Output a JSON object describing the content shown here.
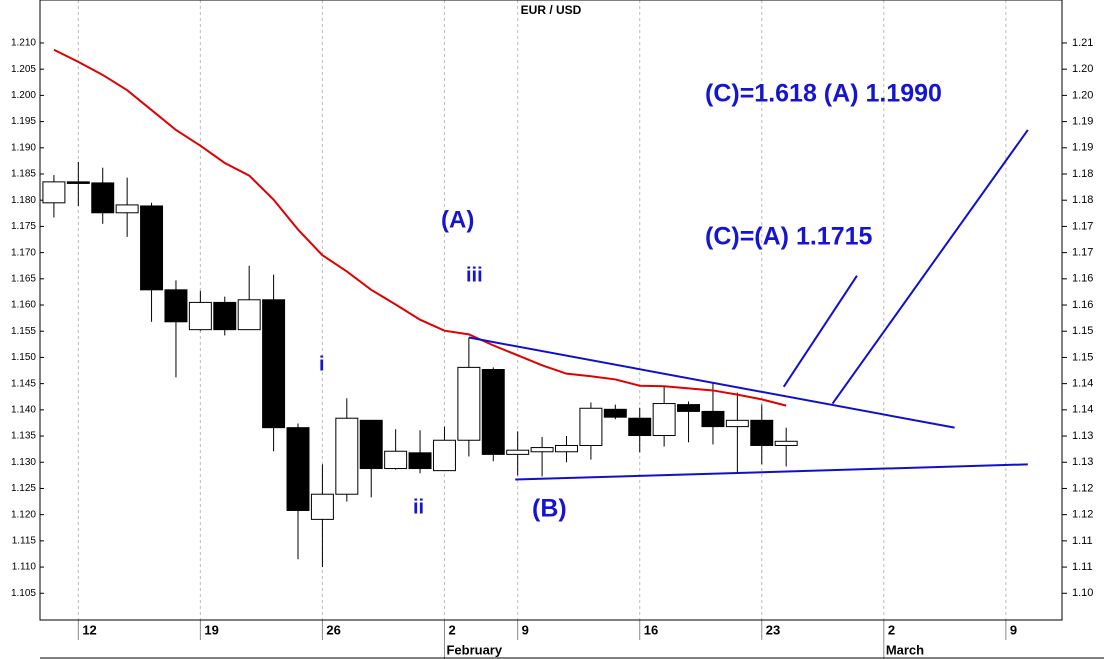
{
  "chart_data": {
    "type": "candlestick",
    "title": "EUR / USD",
    "x": [
      0,
      1,
      2,
      3,
      4,
      5,
      6,
      7,
      8,
      9,
      10,
      11,
      12,
      13,
      14,
      15,
      16,
      17,
      18,
      19,
      20,
      21,
      22,
      23,
      24,
      25,
      26,
      27,
      28,
      29,
      30
    ],
    "open": [
      1.1795,
      1.1835,
      1.1833,
      1.1776,
      1.1789,
      1.1629,
      1.1553,
      1.1605,
      1.1553,
      1.161,
      1.1366,
      1.1191,
      1.1239,
      1.138,
      1.1288,
      1.1318,
      1.1284,
      1.1342,
      1.1477,
      1.1315,
      1.132,
      1.132,
      1.1332,
      1.1401,
      1.1384,
      1.1351,
      1.141,
      1.1397,
      1.1368,
      1.138,
      1.1332
    ],
    "high": [
      1.1848,
      1.1873,
      1.1862,
      1.1843,
      1.1795,
      1.1647,
      1.1627,
      1.1616,
      1.1675,
      1.1658,
      1.1374,
      1.1296,
      1.1422,
      1.138,
      1.1363,
      1.1361,
      1.1368,
      1.1538,
      1.1481,
      1.1359,
      1.1348,
      1.135,
      1.1414,
      1.141,
      1.1404,
      1.1446,
      1.1416,
      1.1452,
      1.1433,
      1.141,
      1.1366
    ],
    "low": [
      1.1767,
      1.1789,
      1.1755,
      1.173,
      1.1568,
      1.1462,
      1.1551,
      1.1542,
      1.1553,
      1.1321,
      1.1115,
      1.11,
      1.1225,
      1.1233,
      1.1286,
      1.1279,
      1.1283,
      1.1311,
      1.1302,
      1.1275,
      1.1273,
      1.13,
      1.1305,
      1.1382,
      1.1319,
      1.133,
      1.1338,
      1.1334,
      1.1281,
      1.1296,
      1.1292
    ],
    "close": [
      1.1835,
      1.1832,
      1.1776,
      1.1791,
      1.1629,
      1.1568,
      1.1605,
      1.1553,
      1.161,
      1.1366,
      1.1208,
      1.1239,
      1.1384,
      1.1288,
      1.1321,
      1.1288,
      1.1342,
      1.1481,
      1.1315,
      1.1323,
      1.1328,
      1.1332,
      1.1403,
      1.1386,
      1.1351,
      1.1412,
      1.1397,
      1.1368,
      1.138,
      1.1332,
      1.134
    ],
    "up_color": "#ffffff",
    "down_color": "#000000",
    "moving_average": {
      "color": "#e00000",
      "values": [
        1.2087,
        1.2064,
        1.2039,
        1.201,
        1.1972,
        1.1934,
        1.1904,
        1.1871,
        1.1847,
        1.1801,
        1.1744,
        1.1695,
        1.1664,
        1.1629,
        1.1601,
        1.1572,
        1.1551,
        1.1544,
        1.1523,
        1.1504,
        1.1485,
        1.1469,
        1.1464,
        1.1458,
        1.1446,
        1.1445,
        1.1441,
        1.1437,
        1.1429,
        1.142,
        1.1408
      ]
    },
    "trendline_color": "#1010cc",
    "trendlines": [
      {
        "x": [
          17,
          36.9
        ],
        "values": [
          1.1538,
          1.1366
        ]
      },
      {
        "x": [
          18.9,
          39.9
        ],
        "values": [
          1.1267,
          1.1296
        ]
      },
      {
        "x": [
          29.9,
          32.9
        ],
        "values": [
          1.1444,
          1.1656
        ]
      },
      {
        "x": [
          31.9,
          39.9
        ],
        "values": [
          1.1412,
          1.1934
        ]
      }
    ],
    "annotation_color": "#1515d0",
    "annotations": [
      "(C)=1.618 (A) 1.1990",
      "(C)=(A) 1.1715",
      "(A)",
      "iii",
      "i",
      "ii",
      "(B)"
    ],
    "xlim": [
      -0.57,
      41.3
    ],
    "xticks": [
      {
        "value": 1,
        "label": "12"
      },
      {
        "value": 6,
        "label": "19"
      },
      {
        "value": 11,
        "label": "26"
      },
      {
        "value": 16,
        "label": "2"
      },
      {
        "value": 19,
        "label": "9"
      },
      {
        "value": 24,
        "label": "16"
      },
      {
        "value": 29,
        "label": "23"
      },
      {
        "value": 34,
        "label": "2"
      },
      {
        "value": 39,
        "label": "9"
      }
    ],
    "month_ticks": [
      {
        "value": 16,
        "label": "February"
      },
      {
        "value": 34,
        "label": "March"
      }
    ],
    "grid": true,
    "ylim": [
      1.0999,
      1.2182
    ],
    "yticks": [
      1.105,
      {
        "value": 1.11,
        "label": "1.110"
      },
      1.115,
      {
        "value": 1.12,
        "label": "1.120"
      },
      1.125,
      {
        "value": 1.13,
        "label": "1.130"
      },
      1.135,
      {
        "value": 1.14,
        "label": "1.140"
      },
      1.145,
      {
        "value": 1.15,
        "label": "1.150"
      },
      1.155,
      {
        "value": 1.16,
        "label": "1.160"
      },
      1.165,
      {
        "value": 1.17,
        "label": "1.170"
      },
      1.175,
      {
        "value": 1.18,
        "label": "1.180"
      },
      1.185,
      {
        "value": 1.19,
        "label": "1.190"
      },
      1.195,
      {
        "value": 1.2,
        "label": "1.200"
      },
      1.205,
      {
        "value": 1.21,
        "label": "1.210"
      }
    ],
    "y2lim": [
      1.0999,
      1.2182
    ],
    "y2ticks": [
      {
        "value": 1.105,
        "label": "1.10"
      },
      1.11,
      {
        "value": 1.115,
        "label": "1.11"
      },
      1.12,
      {
        "value": 1.125,
        "label": "1.12"
      },
      1.13,
      {
        "value": 1.135,
        "label": "1.13"
      },
      1.14,
      {
        "value": 1.145,
        "label": "1.14"
      },
      1.15,
      {
        "value": 1.155,
        "label": "1.15"
      },
      1.16,
      {
        "value": 1.165,
        "label": "1.16"
      },
      1.17,
      {
        "value": 1.175,
        "label": "1.17"
      },
      1.18,
      {
        "value": 1.185,
        "label": "1.18"
      },
      1.19,
      {
        "value": 1.195,
        "label": "1.19"
      },
      {
        "value": 1.2,
        "label": "1.20"
      },
      {
        "value": 1.205,
        "label": "1.20"
      },
      1.21
    ]
  }
}
